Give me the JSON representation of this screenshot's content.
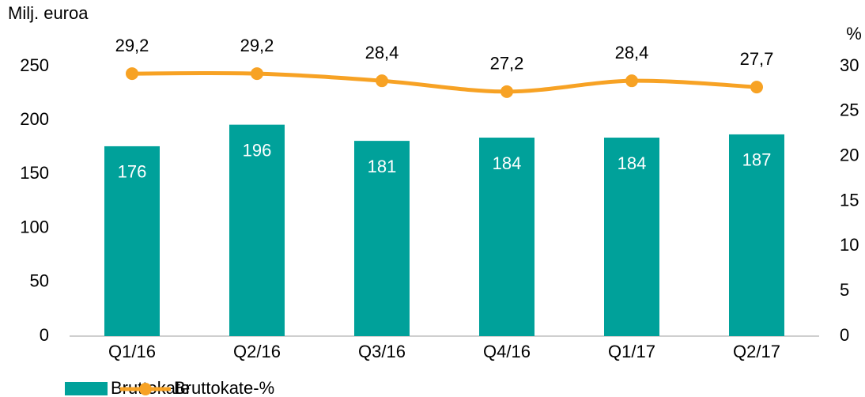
{
  "chart_data": {
    "type": "bar-line",
    "y_label": "Milj. euroa",
    "y2_label": "%",
    "categories": [
      "Q1/16",
      "Q2/16",
      "Q3/16",
      "Q4/16",
      "Q1/17",
      "Q2/17"
    ],
    "series": [
      {
        "name": "Bruttokate",
        "type": "bar",
        "color": "#00a19a",
        "values": [
          176,
          196,
          181,
          184,
          184,
          187
        ]
      },
      {
        "name": "Bruttokate-%",
        "type": "line",
        "axis": "y2",
        "color": "#f7a224",
        "values": [
          29.2,
          29.2,
          28.4,
          27.2,
          28.4,
          27.7
        ],
        "value_labels": [
          "29,2",
          "29,2",
          "28,4",
          "27,2",
          "28,4",
          "27,7"
        ]
      }
    ],
    "ylim": [
      0,
      250
    ],
    "yticks": [
      0,
      50,
      100,
      150,
      200,
      250
    ],
    "y2lim": [
      0,
      30
    ],
    "y2ticks": [
      0,
      5,
      10,
      15,
      20,
      25,
      30
    ],
    "grid": false,
    "legend": "bottom"
  }
}
